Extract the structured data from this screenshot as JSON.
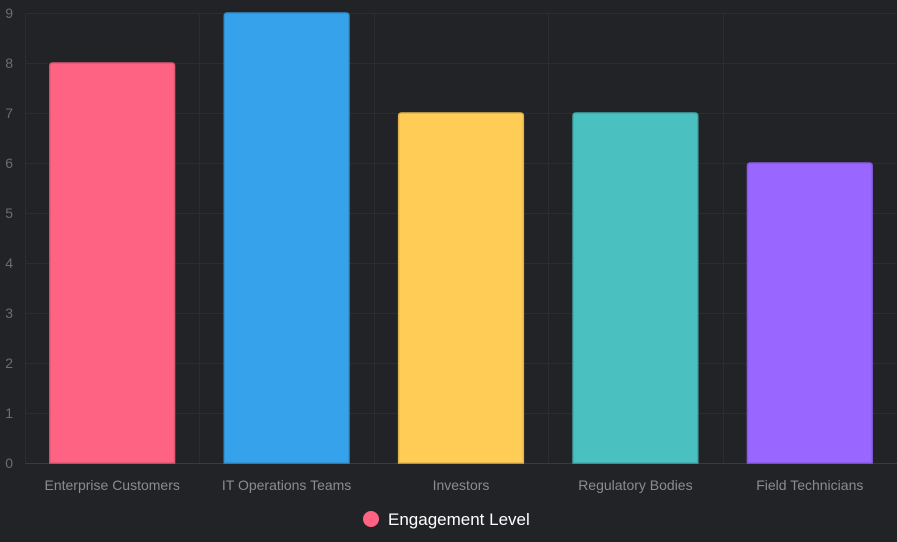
{
  "chart_data": {
    "type": "bar",
    "categories": [
      "Enterprise Customers",
      "IT Operations Teams",
      "Investors",
      "Regulatory Bodies",
      "Field Technicians"
    ],
    "series": [
      {
        "name": "Engagement Level",
        "values": [
          8,
          9,
          7,
          7,
          6
        ]
      }
    ],
    "bar_colors": [
      "#ff6384",
      "#36a2eb",
      "#ffcd56",
      "#4bc0c0",
      "#9966ff"
    ],
    "legend_color": "#ff6384",
    "ylim": [
      0,
      9
    ],
    "yticks": [
      0,
      1,
      2,
      3,
      4,
      5,
      6,
      7,
      8,
      9
    ],
    "grid": true,
    "legend_position": "bottom",
    "title": "",
    "xlabel": "",
    "ylabel": ""
  }
}
